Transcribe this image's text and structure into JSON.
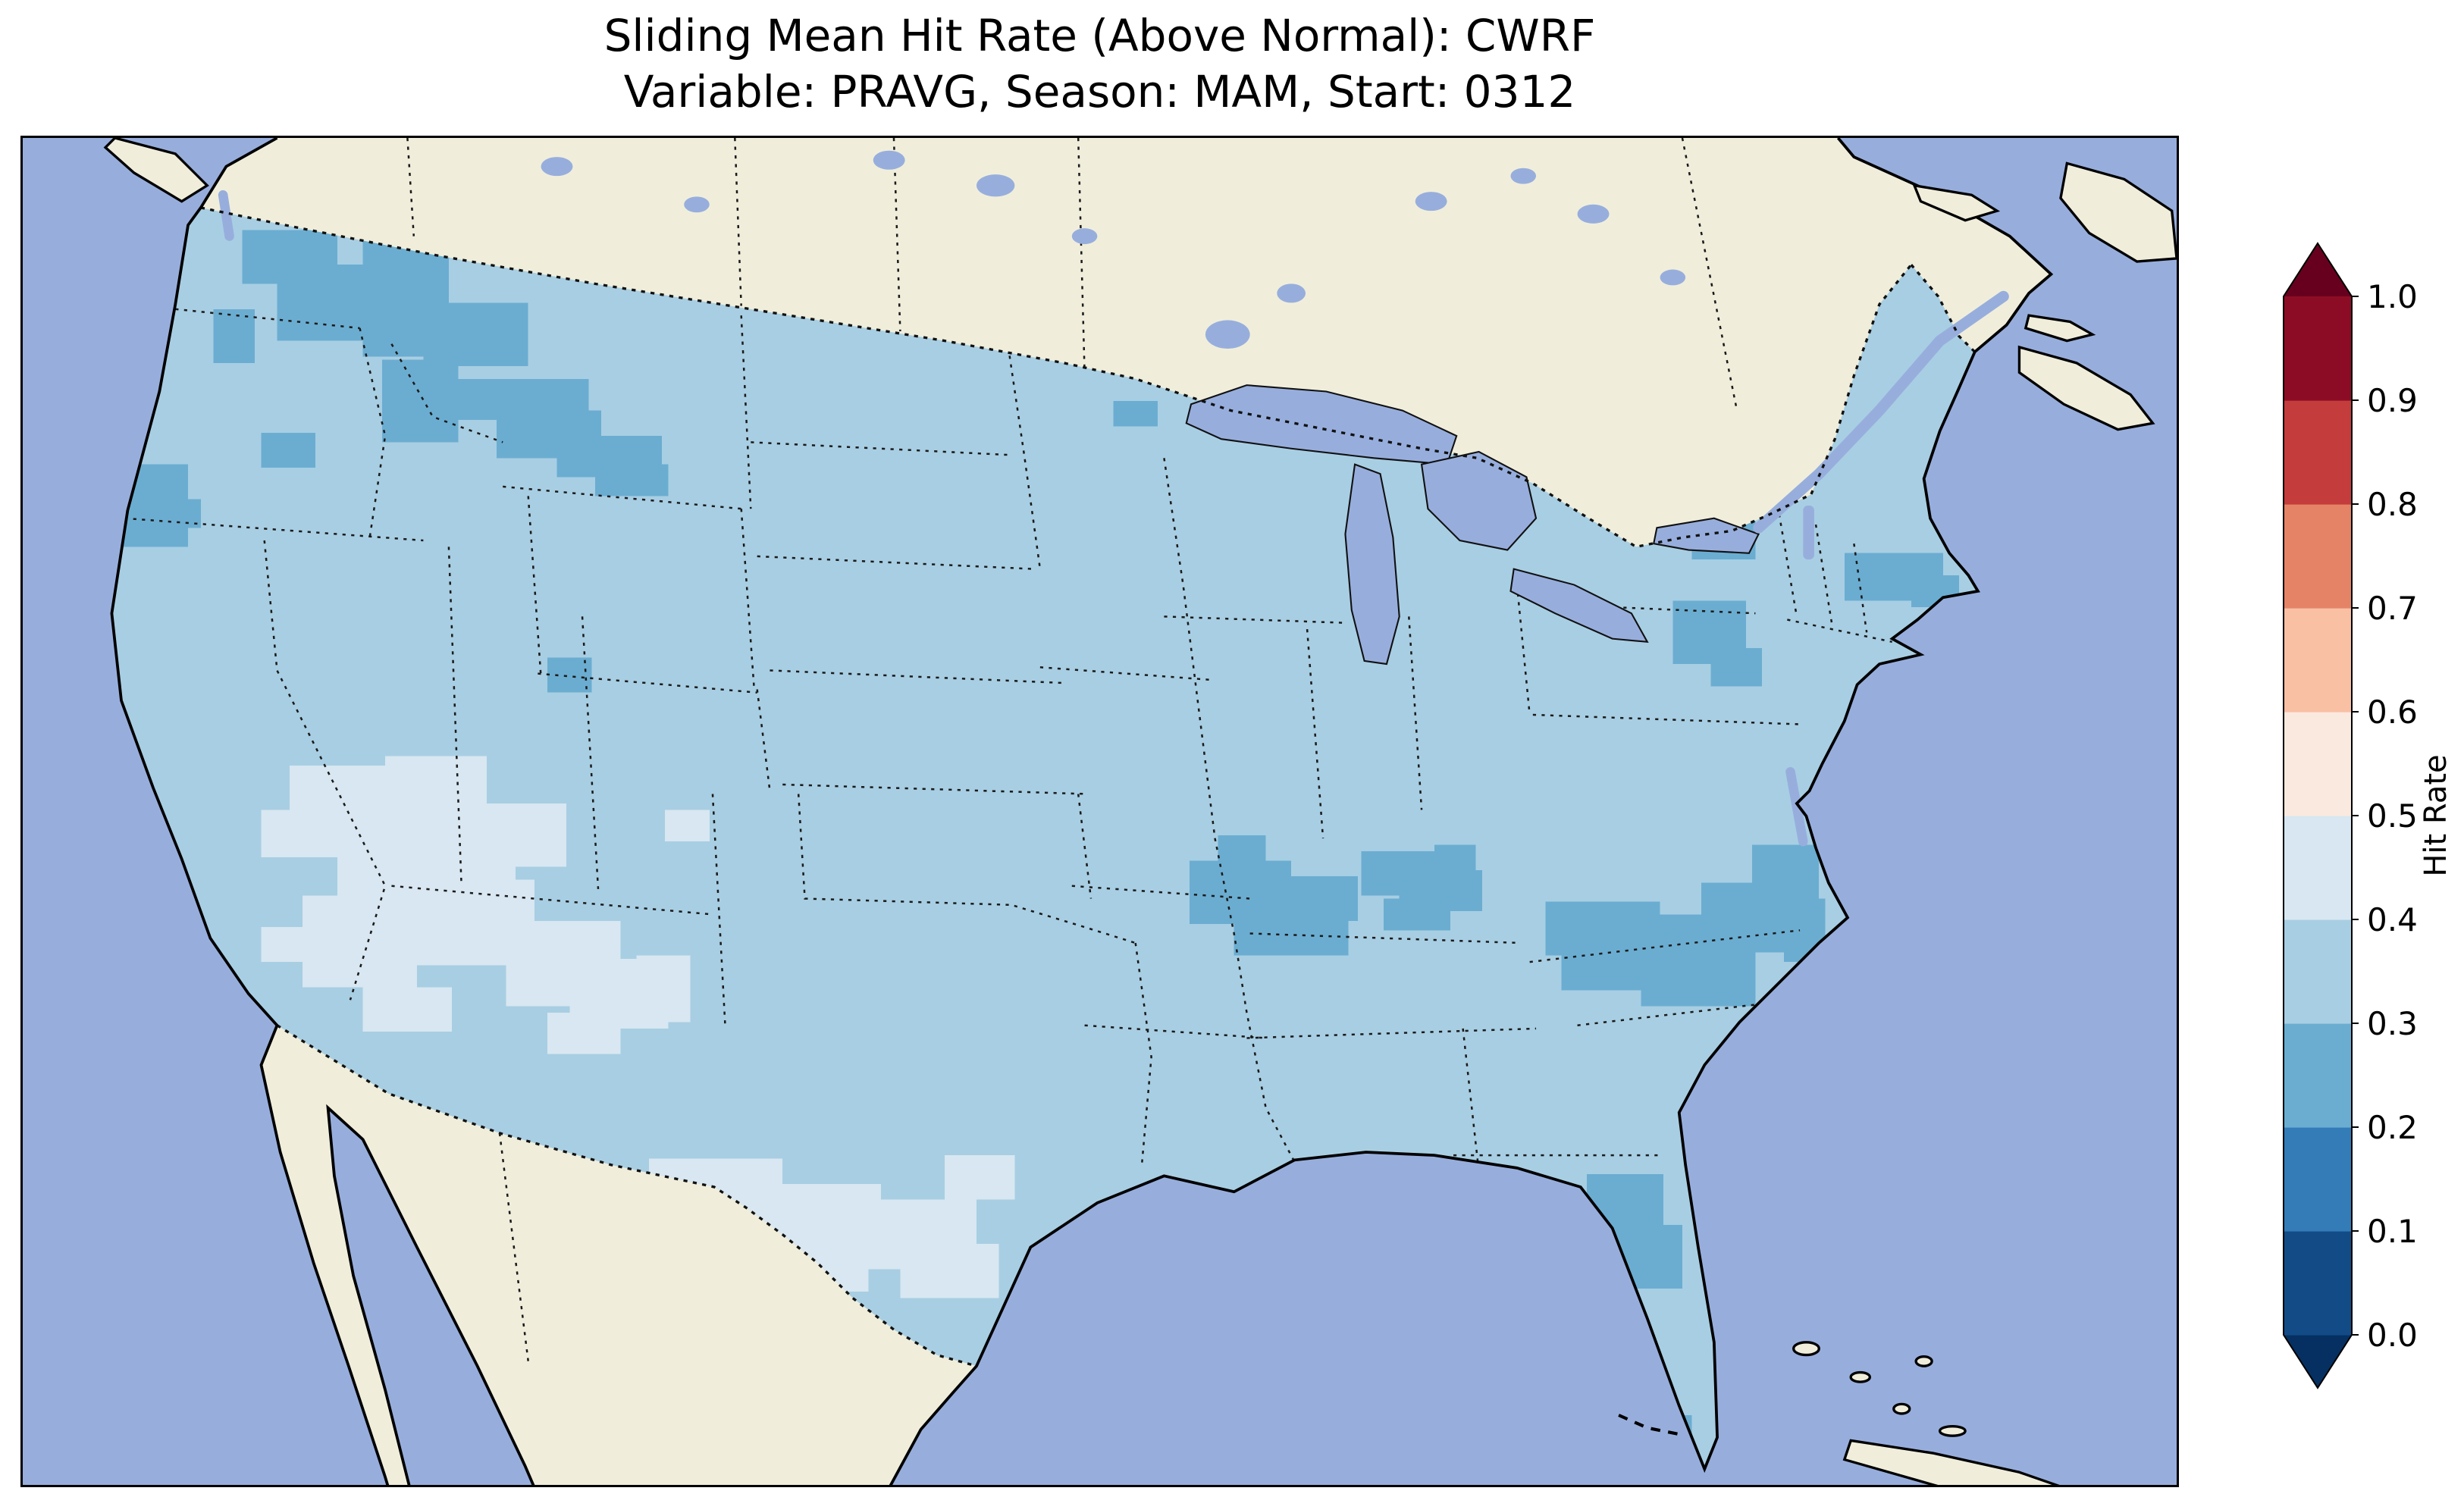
{
  "figure": {
    "title_line1": "Sliding Mean Hit Rate (Above Normal): CWRF",
    "title_line2": "Variable: PRAVG, Season: MAM, Start: 0312"
  },
  "colorbar": {
    "label": "Hit Rate",
    "ticks": [
      "0.0",
      "0.1",
      "0.2",
      "0.3",
      "0.4",
      "0.5",
      "0.6",
      "0.7",
      "0.8",
      "0.9",
      "1.0"
    ],
    "segment_colors": [
      "#134b86",
      "#337cb8",
      "#6badd1",
      "#a8cee3",
      "#d8e7f1",
      "#fae9df",
      "#f9c0a4",
      "#e58367",
      "#c43c3c",
      "#8d0c25"
    ],
    "under_color": "#053061",
    "over_color": "#67001f"
  },
  "map": {
    "ocean_color": "#97aedd",
    "land_color": "#f0eedb",
    "coast_color": "#000000",
    "border_color": "#1a1a1a"
  },
  "chart_data": {
    "type": "heatmap",
    "title": "Sliding Mean Hit Rate (Above Normal): CWRF",
    "subtitle": "Variable: PRAVG, Season: MAM, Start: 0312",
    "model": "CWRF",
    "variable": "PRAVG",
    "season": "MAM",
    "start": "0312",
    "metric": "Hit Rate",
    "category": "Above Normal",
    "region": "Contiguous United States (CONUS) with surrounding Canada, Mexico, oceans",
    "colorbar": {
      "label": "Hit Rate",
      "range": [
        0.0,
        1.0
      ],
      "bin_width": 0.1,
      "ticks": [
        0.0,
        0.1,
        0.2,
        0.3,
        0.4,
        0.5,
        0.6,
        0.7,
        0.8,
        0.9,
        1.0
      ],
      "extend": "both",
      "colormap": "RdBu_r, discrete 10 bins, triangular under/over arrows"
    },
    "observations": [
      {
        "region": "Most of CONUS (background field)",
        "hit_rate": "0.3-0.4"
      },
      {
        "region": "E Washington / N Idaho / W Montana",
        "hit_rate": "0.2-0.3"
      },
      {
        "region": "Oregon coast",
        "hit_rate": "0.2-0.3"
      },
      {
        "region": "Missouri / S Illinois",
        "hit_rate": "0.2-0.3"
      },
      {
        "region": "S Indiana / Ohio / W Virginia",
        "hit_rate": "0.2-0.3"
      },
      {
        "region": "North Carolina / S Virginia",
        "hit_rate": "0.2-0.3"
      },
      {
        "region": "Alabama",
        "hit_rate": "0.2-0.3"
      },
      {
        "region": "N Florida / S Georgia panhandle area",
        "hit_rate": "0.2-0.3"
      },
      {
        "region": "Massachusetts / E New York / S of Great Lakes",
        "hit_rate": "0.2-0.3"
      },
      {
        "region": "Great Basin: Nevada / Utah / N Arizona / New Mexico",
        "hit_rate": "0.4-0.5"
      },
      {
        "region": "Central and South Texas band",
        "hit_rate": "0.4-0.5"
      },
      {
        "region": "Canada and Mexico",
        "hit_rate": "no data (land color)"
      }
    ],
    "patches": [
      {
        "bin": 2,
        "rects": [
          [
            138,
            58,
            60,
            34
          ],
          [
            160,
            80,
            96,
            48
          ],
          [
            214,
            62,
            54,
            76
          ],
          [
            252,
            104,
            66,
            40
          ],
          [
            226,
            140,
            48,
            52
          ],
          [
            268,
            152,
            88,
            26
          ],
          [
            298,
            172,
            66,
            30
          ],
          [
            336,
            188,
            66,
            26
          ],
          [
            150,
            186,
            34,
            22
          ],
          [
            120,
            108,
            26,
            34
          ],
          [
            360,
            206,
            46,
            20
          ],
          [
            58,
            206,
            46,
            52
          ],
          [
            92,
            228,
            20,
            18
          ],
          [
            330,
            328,
            28,
            22
          ],
          [
            686,
            166,
            28,
            16
          ],
          [
            734,
            456,
            64,
            40
          ],
          [
            762,
            482,
            72,
            34
          ],
          [
            798,
            466,
            42,
            28
          ],
          [
            752,
            440,
            30,
            20
          ],
          [
            842,
            450,
            48,
            28
          ],
          [
            866,
            462,
            52,
            26
          ],
          [
            856,
            480,
            42,
            20
          ],
          [
            888,
            446,
            26,
            20
          ],
          [
            958,
            482,
            72,
            34
          ],
          [
            1006,
            490,
            84,
            40
          ],
          [
            1056,
            470,
            62,
            44
          ],
          [
            1088,
            446,
            42,
            34
          ],
          [
            1018,
            520,
            72,
            28
          ],
          [
            968,
            514,
            52,
            24
          ],
          [
            1108,
            480,
            26,
            40
          ],
          [
            854,
            646,
            46,
            44
          ],
          [
            868,
            682,
            42,
            34
          ],
          [
            984,
            654,
            48,
            40
          ],
          [
            998,
            686,
            46,
            40
          ],
          [
            1146,
            262,
            62,
            30
          ],
          [
            1188,
            276,
            30,
            20
          ],
          [
            1038,
            292,
            46,
            40
          ],
          [
            1062,
            322,
            32,
            24
          ],
          [
            1050,
            240,
            40,
            26
          ],
          [
            1030,
            806,
            20,
            16
          ]
        ]
      },
      {
        "bin": 4,
        "rects": [
          [
            168,
            396,
            84,
            58
          ],
          [
            198,
            428,
            112,
            68
          ],
          [
            176,
            478,
            72,
            58
          ],
          [
            238,
            468,
            84,
            54
          ],
          [
            228,
            390,
            64,
            44
          ],
          [
            288,
            420,
            54,
            40
          ],
          [
            214,
            536,
            56,
            28
          ],
          [
            150,
            424,
            34,
            30
          ],
          [
            150,
            498,
            26,
            22
          ],
          [
            304,
            494,
            72,
            54
          ],
          [
            344,
            518,
            62,
            44
          ],
          [
            330,
            552,
            46,
            26
          ],
          [
            386,
            516,
            34,
            42
          ],
          [
            404,
            424,
            28,
            20
          ],
          [
            394,
            644,
            84,
            44
          ],
          [
            448,
            660,
            92,
            50
          ],
          [
            518,
            670,
            82,
            44
          ],
          [
            552,
            698,
            62,
            34
          ],
          [
            468,
            698,
            64,
            30
          ],
          [
            428,
            678,
            52,
            34
          ],
          [
            580,
            642,
            44,
            28
          ]
        ]
      }
    ]
  }
}
